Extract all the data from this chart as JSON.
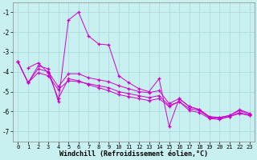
{
  "background_color": "#c8f0f0",
  "grid_color": "#a8d8d8",
  "line_color": "#cc00cc",
  "spine_color": "#888888",
  "text_color": "#000000",
  "xlabel": "Windchill (Refroidissement éolien,°C)",
  "xlim": [
    -0.5,
    23.5
  ],
  "ylim": [
    -7.5,
    -0.5
  ],
  "yticks": [
    -7,
    -6,
    -5,
    -4,
    -3,
    -2,
    -1
  ],
  "xticks": [
    0,
    1,
    2,
    3,
    4,
    5,
    6,
    7,
    8,
    9,
    10,
    11,
    12,
    13,
    14,
    15,
    16,
    17,
    18,
    19,
    20,
    21,
    22,
    23
  ],
  "lines": [
    {
      "x": [
        0,
        1,
        2,
        3,
        4,
        5,
        6,
        7,
        8,
        9,
        10,
        11,
        12,
        13,
        14,
        15,
        16,
        17,
        18,
        19,
        20,
        21,
        22,
        23
      ],
      "y": [
        -3.5,
        -4.55,
        -3.7,
        -3.85,
        -5.5,
        -1.4,
        -1.0,
        -2.2,
        -2.6,
        -2.65,
        -4.2,
        -4.55,
        -4.85,
        -5.0,
        -4.35,
        -6.75,
        -5.35,
        -5.75,
        -5.9,
        -6.3,
        -6.3,
        -6.2,
        -5.9,
        -6.1
      ]
    },
    {
      "x": [
        0,
        1,
        2,
        3,
        4,
        5,
        6,
        7,
        8,
        9,
        10,
        11,
        12,
        13,
        14,
        15,
        16,
        17,
        18,
        19,
        20,
        21,
        22,
        23
      ],
      "y": [
        -3.5,
        -4.55,
        -3.85,
        -4.0,
        -4.75,
        -4.1,
        -4.1,
        -4.3,
        -4.4,
        -4.5,
        -4.7,
        -4.85,
        -5.0,
        -5.05,
        -4.95,
        -5.6,
        -5.35,
        -5.75,
        -5.9,
        -6.25,
        -6.3,
        -6.2,
        -5.95,
        -6.15
      ]
    },
    {
      "x": [
        0,
        1,
        2,
        3,
        4,
        5,
        6,
        7,
        8,
        9,
        10,
        11,
        12,
        13,
        14,
        15,
        16,
        17,
        18,
        19,
        20,
        21,
        22,
        23
      ],
      "y": [
        -3.5,
        -4.55,
        -4.05,
        -4.2,
        -4.9,
        -4.45,
        -4.5,
        -4.6,
        -4.7,
        -4.8,
        -5.0,
        -5.1,
        -5.2,
        -5.3,
        -5.2,
        -5.7,
        -5.5,
        -5.85,
        -5.95,
        -6.3,
        -6.35,
        -6.25,
        -6.05,
        -6.2
      ]
    },
    {
      "x": [
        1,
        2,
        3,
        4,
        5,
        6,
        7,
        8,
        9,
        10,
        11,
        12,
        13,
        14,
        15,
        16,
        17,
        18,
        19,
        20,
        21,
        22,
        23
      ],
      "y": [
        -3.8,
        -3.55,
        -4.05,
        -5.35,
        -4.35,
        -4.45,
        -4.65,
        -4.8,
        -4.95,
        -5.15,
        -5.25,
        -5.35,
        -5.45,
        -5.35,
        -5.75,
        -5.5,
        -5.95,
        -6.05,
        -6.35,
        -6.4,
        -6.25,
        -6.1,
        -6.2
      ]
    }
  ]
}
